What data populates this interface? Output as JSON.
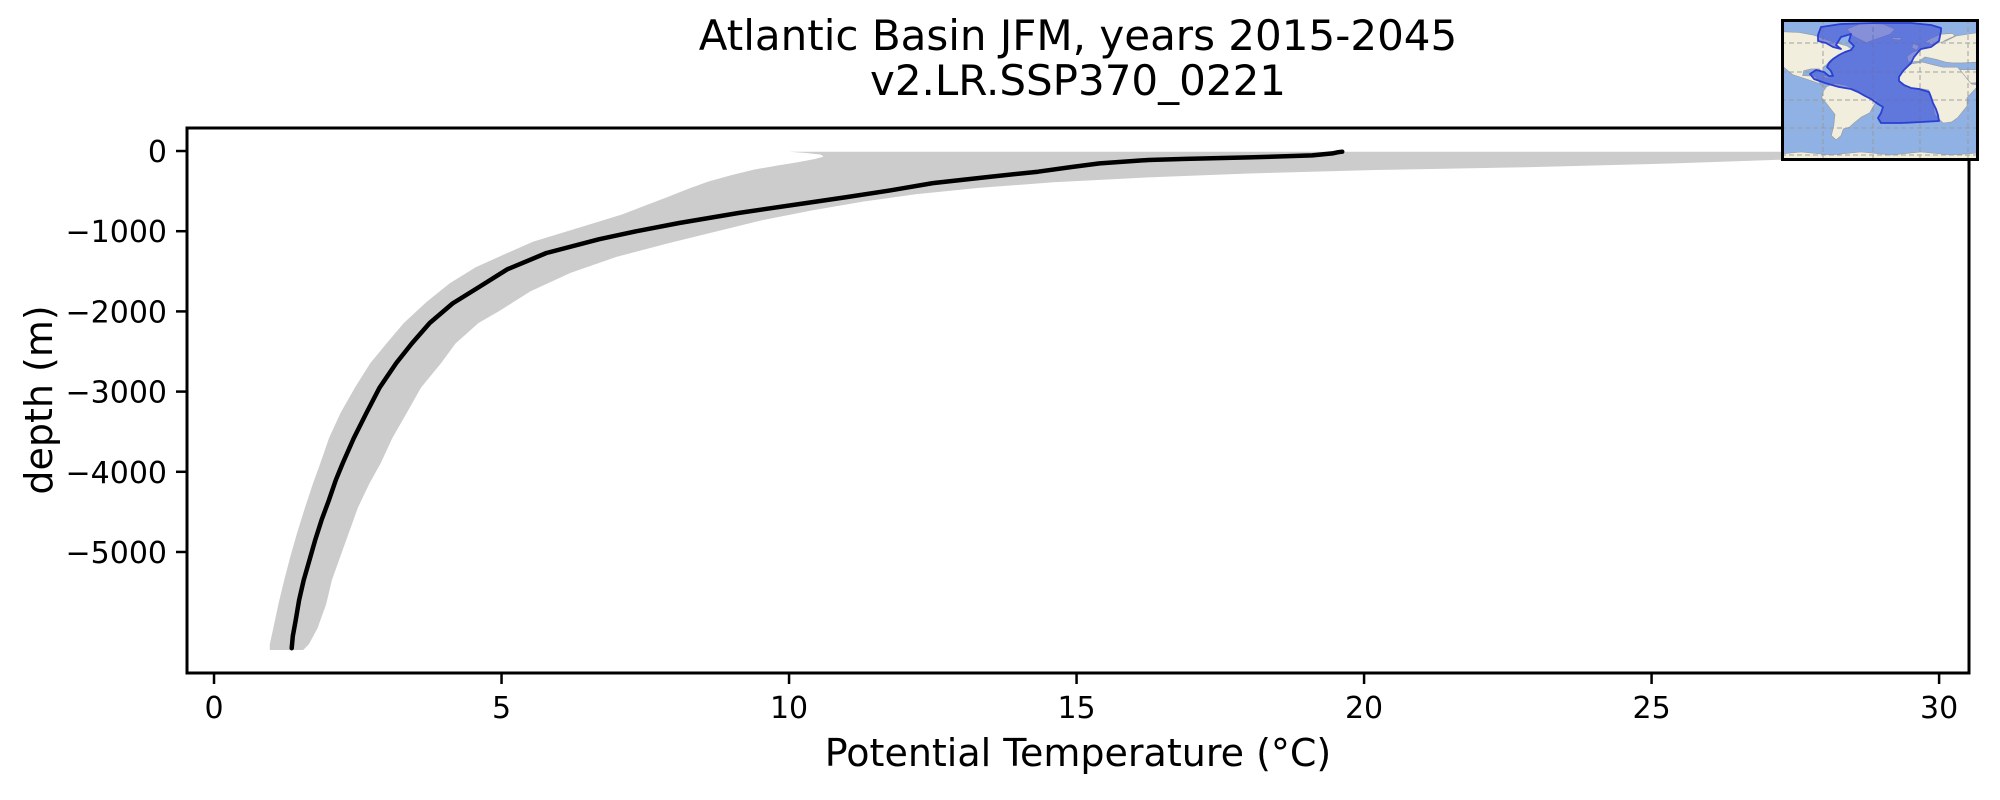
{
  "figure": {
    "title_line1": "Atlantic Basin JFM, years 2015-2045",
    "title_line2": "v2.LR.SSP370_0221",
    "background": "#ffffff"
  },
  "chart_data": {
    "type": "line",
    "title": "Atlantic Basin JFM, years 2015-2045 / v2.LR.SSP370_0221",
    "xlabel": "Potential Temperature (°C)",
    "ylabel": "depth (m)",
    "xlim": [
      -0.47,
      30.52
    ],
    "ylim": [
      287,
      -6509
    ],
    "grid": false,
    "legend": "none",
    "x_ticks": [
      {
        "v": 0,
        "label": "0"
      },
      {
        "v": 5,
        "label": "5"
      },
      {
        "v": 10,
        "label": "10"
      },
      {
        "v": 15,
        "label": "15"
      },
      {
        "v": 20,
        "label": "20"
      },
      {
        "v": 25,
        "label": "25"
      },
      {
        "v": 30,
        "label": "30"
      }
    ],
    "y_ticks": [
      {
        "v": 0,
        "label": "0"
      },
      {
        "v": -1000,
        "label": "−1000"
      },
      {
        "v": -2000,
        "label": "−2000"
      },
      {
        "v": -3000,
        "label": "−3000"
      },
      {
        "v": -4000,
        "label": "−4000"
      },
      {
        "v": -5000,
        "label": "−5000"
      }
    ],
    "series": [
      {
        "name": "mean_potential_temperature_profile",
        "style": "line",
        "color": "#000000",
        "width": 4.5,
        "points": [
          [
            19.62,
            -8
          ],
          [
            19.55,
            -15
          ],
          [
            19.45,
            -30
          ],
          [
            19.1,
            -55
          ],
          [
            18.0,
            -80
          ],
          [
            16.9,
            -98
          ],
          [
            16.25,
            -112
          ],
          [
            15.4,
            -155
          ],
          [
            14.9,
            -200
          ],
          [
            14.33,
            -258
          ],
          [
            13.5,
            -320
          ],
          [
            12.5,
            -400
          ],
          [
            11.73,
            -495
          ],
          [
            11.0,
            -575
          ],
          [
            10.29,
            -650
          ],
          [
            9.12,
            -773
          ],
          [
            8.09,
            -898
          ],
          [
            7.35,
            -1000
          ],
          [
            6.7,
            -1100
          ],
          [
            5.78,
            -1272
          ],
          [
            5.1,
            -1475
          ],
          [
            4.61,
            -1696
          ],
          [
            4.15,
            -1900
          ],
          [
            3.75,
            -2145
          ],
          [
            3.44,
            -2400
          ],
          [
            3.17,
            -2643
          ],
          [
            2.88,
            -2950
          ],
          [
            2.65,
            -3267
          ],
          [
            2.43,
            -3580
          ],
          [
            2.24,
            -3890
          ],
          [
            2.12,
            -4100
          ],
          [
            2.0,
            -4350
          ],
          [
            1.87,
            -4600
          ],
          [
            1.76,
            -4850
          ],
          [
            1.66,
            -5100
          ],
          [
            1.56,
            -5350
          ],
          [
            1.48,
            -5600
          ],
          [
            1.42,
            -5850
          ],
          [
            1.37,
            -6050
          ],
          [
            1.35,
            -6200
          ]
        ]
      },
      {
        "name": "spread_band",
        "style": "band",
        "color": "#cccccc",
        "upper": [
          [
            29.6,
            -8
          ],
          [
            29.5,
            -25
          ],
          [
            29.1,
            -55
          ],
          [
            28.4,
            -85
          ],
          [
            27.1,
            -112
          ],
          [
            25.4,
            -155
          ],
          [
            22.9,
            -200
          ],
          [
            20.2,
            -237
          ],
          [
            18.0,
            -280
          ],
          [
            16.2,
            -330
          ],
          [
            14.6,
            -390
          ],
          [
            13.3,
            -460
          ],
          [
            12.2,
            -540
          ],
          [
            11.3,
            -630
          ],
          [
            10.4,
            -740
          ],
          [
            9.55,
            -860
          ],
          [
            8.75,
            -1000
          ],
          [
            7.9,
            -1150
          ],
          [
            7.0,
            -1320
          ],
          [
            6.2,
            -1520
          ],
          [
            5.5,
            -1750
          ],
          [
            4.95,
            -2000
          ],
          [
            4.6,
            -2145
          ],
          [
            4.2,
            -2400
          ],
          [
            3.95,
            -2643
          ],
          [
            3.6,
            -2950
          ],
          [
            3.35,
            -3267
          ],
          [
            3.1,
            -3580
          ],
          [
            2.9,
            -3890
          ],
          [
            2.7,
            -4150
          ],
          [
            2.5,
            -4450
          ],
          [
            2.35,
            -4750
          ],
          [
            2.2,
            -5050
          ],
          [
            2.05,
            -5350
          ],
          [
            1.95,
            -5650
          ],
          [
            1.8,
            -5950
          ],
          [
            1.65,
            -6150
          ],
          [
            1.55,
            -6222
          ]
        ],
        "lower": [
          [
            10.0,
            -8
          ],
          [
            10.3,
            -25
          ],
          [
            10.55,
            -45
          ],
          [
            10.6,
            -70
          ],
          [
            10.45,
            -100
          ],
          [
            10.15,
            -140
          ],
          [
            9.8,
            -180
          ],
          [
            9.4,
            -230
          ],
          [
            9.0,
            -300
          ],
          [
            8.6,
            -380
          ],
          [
            8.25,
            -470
          ],
          [
            7.9,
            -570
          ],
          [
            7.5,
            -680
          ],
          [
            7.1,
            -790
          ],
          [
            6.6,
            -900
          ],
          [
            6.1,
            -1010
          ],
          [
            5.55,
            -1130
          ],
          [
            5.1,
            -1272
          ],
          [
            4.55,
            -1450
          ],
          [
            4.1,
            -1650
          ],
          [
            3.7,
            -1880
          ],
          [
            3.3,
            -2145
          ],
          [
            3.0,
            -2400
          ],
          [
            2.72,
            -2643
          ],
          [
            2.45,
            -2950
          ],
          [
            2.2,
            -3267
          ],
          [
            2.0,
            -3580
          ],
          [
            1.85,
            -3890
          ],
          [
            1.72,
            -4150
          ],
          [
            1.58,
            -4450
          ],
          [
            1.45,
            -4750
          ],
          [
            1.33,
            -5050
          ],
          [
            1.22,
            -5350
          ],
          [
            1.12,
            -5650
          ],
          [
            1.03,
            -5950
          ],
          [
            0.97,
            -6150
          ],
          [
            0.97,
            -6222
          ]
        ]
      }
    ]
  },
  "inset_map": {
    "name": "atlantic-basin-region-map",
    "colors": {
      "ocean": "#8fb1e3",
      "land": "#f1eedd",
      "coast": "#9a9a9a",
      "highlight_fill": "#4356d6",
      "highlight_edge": "#2b3fd2",
      "gridline": "#999999",
      "frame": "#000000"
    }
  }
}
